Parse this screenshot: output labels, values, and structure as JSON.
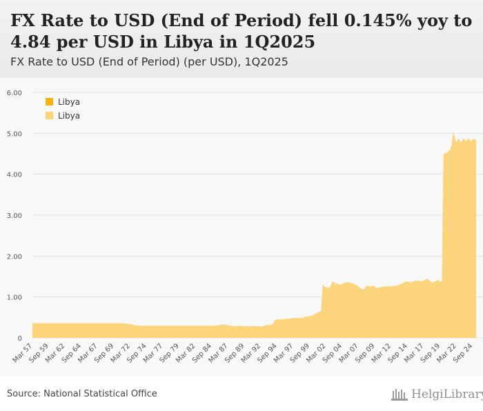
{
  "title": "FX Rate to USD (End of Period) fell 0.145% yoy to 4.84 per USD in Libya in 1Q2025",
  "subtitle": "FX Rate to USD (End of Period) (per USD), 1Q2025",
  "source": "Source: National Statistical Office",
  "logo_text": "HelgiLibrary",
  "colors": {
    "area": "#fbd47c",
    "legend_dark": "#f5b20e",
    "legend_light": "#fbd47c",
    "grid": "#e3e3e3"
  },
  "chart_data": {
    "type": "area",
    "title": "FX Rate to USD (End of Period) (per USD), 1Q2025",
    "xlabel": "",
    "ylabel": "",
    "ylim": [
      0,
      6
    ],
    "yticks": [
      0,
      1,
      2,
      3,
      4,
      5,
      6
    ],
    "ytick_labels": [
      "0",
      "1.00",
      "2.00",
      "3.00",
      "4.00",
      "5.00",
      "6.00"
    ],
    "x_start": 1957.25,
    "x_end": 2025.25,
    "xtick_labels": [
      {
        "label": "Mar 57",
        "t": 1957.25
      },
      {
        "label": "Sep 59",
        "t": 1959.75
      },
      {
        "label": "Mar 62",
        "t": 1962.25
      },
      {
        "label": "Sep 64",
        "t": 1964.75
      },
      {
        "label": "Mar 67",
        "t": 1967.25
      },
      {
        "label": "Sep 69",
        "t": 1969.75
      },
      {
        "label": "Mar 72",
        "t": 1972.25
      },
      {
        "label": "Sep 74",
        "t": 1974.75
      },
      {
        "label": "Mar 77",
        "t": 1977.25
      },
      {
        "label": "Sep 79",
        "t": 1979.75
      },
      {
        "label": "Mar 82",
        "t": 1982.25
      },
      {
        "label": "Sep 84",
        "t": 1984.75
      },
      {
        "label": "Mar 87",
        "t": 1987.25
      },
      {
        "label": "Sep 89",
        "t": 1989.75
      },
      {
        "label": "Mar 92",
        "t": 1992.25
      },
      {
        "label": "Sep 94",
        "t": 1994.75
      },
      {
        "label": "Mar 97",
        "t": 1997.25
      },
      {
        "label": "Sep 99",
        "t": 1999.75
      },
      {
        "label": "Mar 02",
        "t": 2002.25
      },
      {
        "label": "Sep 04",
        "t": 2004.75
      },
      {
        "label": "Mar 07",
        "t": 2007.25
      },
      {
        "label": "Sep 09",
        "t": 2009.75
      },
      {
        "label": "Mar 12",
        "t": 2012.25
      },
      {
        "label": "Sep 14",
        "t": 2014.75
      },
      {
        "label": "Mar 17",
        "t": 2017.25
      },
      {
        "label": "Sep 19",
        "t": 2019.75
      },
      {
        "label": "Mar 22",
        "t": 2022.25
      },
      {
        "label": "Sep 24",
        "t": 2024.75
      }
    ],
    "legend": [
      "Libya",
      "Libya"
    ],
    "legend_position": "top-left",
    "series": [
      {
        "name": "Libya",
        "points": [
          [
            1957.25,
            0.36
          ],
          [
            1971.0,
            0.36
          ],
          [
            1971.5,
            0.35
          ],
          [
            1972.5,
            0.33
          ],
          [
            1973.0,
            0.3
          ],
          [
            1985.5,
            0.3
          ],
          [
            1986.5,
            0.33
          ],
          [
            1987.5,
            0.3
          ],
          [
            1988.5,
            0.28
          ],
          [
            1989.0,
            0.3
          ],
          [
            1990.5,
            0.28
          ],
          [
            1991.0,
            0.29
          ],
          [
            1992.5,
            0.28
          ],
          [
            1993.0,
            0.31
          ],
          [
            1994.0,
            0.32
          ],
          [
            1994.5,
            0.45
          ],
          [
            1995.5,
            0.45
          ],
          [
            1996.5,
            0.47
          ],
          [
            1997.5,
            0.49
          ],
          [
            1998.5,
            0.48
          ],
          [
            1999.0,
            0.51
          ],
          [
            2000.0,
            0.54
          ],
          [
            2001.0,
            0.62
          ],
          [
            2001.5,
            0.66
          ],
          [
            2001.75,
            1.3
          ],
          [
            2002.0,
            1.25
          ],
          [
            2002.75,
            1.22
          ],
          [
            2003.25,
            1.38
          ],
          [
            2003.75,
            1.33
          ],
          [
            2004.5,
            1.3
          ],
          [
            2005.25,
            1.36
          ],
          [
            2006.0,
            1.35
          ],
          [
            2007.0,
            1.28
          ],
          [
            2007.5,
            1.22
          ],
          [
            2008.0,
            1.18
          ],
          [
            2008.5,
            1.28
          ],
          [
            2009.0,
            1.25
          ],
          [
            2009.5,
            1.28
          ],
          [
            2010.0,
            1.22
          ],
          [
            2011.0,
            1.25
          ],
          [
            2012.0,
            1.26
          ],
          [
            2013.0,
            1.27
          ],
          [
            2013.75,
            1.32
          ],
          [
            2014.5,
            1.38
          ],
          [
            2015.25,
            1.36
          ],
          [
            2016.0,
            1.4
          ],
          [
            2017.0,
            1.38
          ],
          [
            2017.75,
            1.45
          ],
          [
            2018.5,
            1.35
          ],
          [
            2019.25,
            1.4
          ],
          [
            2019.5,
            1.42
          ],
          [
            2019.75,
            1.36
          ],
          [
            2020.0,
            1.4
          ],
          [
            2020.25,
            4.5
          ],
          [
            2020.75,
            4.52
          ],
          [
            2021.25,
            4.6
          ],
          [
            2021.5,
            4.7
          ],
          [
            2021.75,
            5.05
          ],
          [
            2022.0,
            4.88
          ],
          [
            2022.25,
            4.76
          ],
          [
            2022.5,
            4.88
          ],
          [
            2023.0,
            4.78
          ],
          [
            2023.25,
            4.87
          ],
          [
            2023.75,
            4.82
          ],
          [
            2024.0,
            4.88
          ],
          [
            2024.5,
            4.8
          ],
          [
            2024.75,
            4.87
          ],
          [
            2025.0,
            4.85
          ],
          [
            2025.25,
            4.84
          ]
        ]
      }
    ]
  }
}
